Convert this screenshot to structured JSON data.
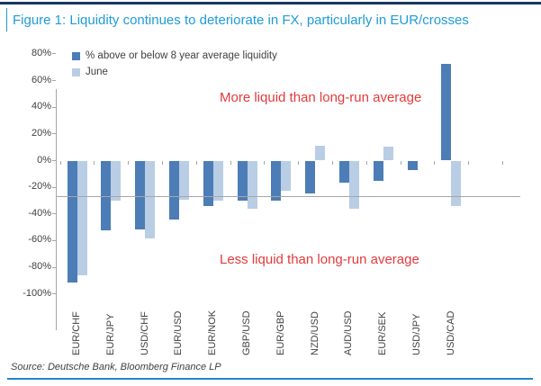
{
  "figure": {
    "title": "Figure 1: Liquidity continues to deteriorate in FX, particularly in EUR/crosses",
    "source": "Source: Deutsche Bank, Bloomberg Finance LP"
  },
  "colors": {
    "title": "#1E9BD7",
    "top_rule": "#17375E",
    "bottom_rule": "#2386C8",
    "series1": "#4C7DB6",
    "series2": "#B9CDE5",
    "annotation": "#E43A3C",
    "axis": "#A6A6A6",
    "labels": "#3F3F3F"
  },
  "chart_data": {
    "type": "bar",
    "title": "Figure 1: Liquidity continues to deteriorate in FX, particularly in EUR/crosses",
    "categories": [
      "EUR/CHF",
      "EUR/JPY",
      "USD/CHF",
      "EUR/USD",
      "EUR/NOK",
      "GBP/USD",
      "EUR/GBP",
      "NZD/USD",
      "AUD/USD",
      "EUR/SEK",
      "USD/JPY",
      "USD/CAD"
    ],
    "series": [
      {
        "name": "% above or below 8 year average liquidity",
        "color": "#4C7DB6",
        "values": [
          -91,
          -52,
          -51,
          -44,
          -34,
          -30,
          -30,
          -24,
          -16,
          -15,
          -7,
          72
        ]
      },
      {
        "name": "June",
        "color": "#B9CDE5",
        "values": [
          -86,
          -30,
          -58,
          -29,
          -30,
          -36,
          -22,
          11,
          -36,
          10,
          0,
          -34
        ]
      }
    ],
    "xlabel": "",
    "ylabel": "",
    "ylim": [
      -100,
      80
    ],
    "y_ticks": [
      80,
      60,
      40,
      20,
      0,
      -20,
      -40,
      -60,
      -80,
      -100
    ],
    "y_tick_labels": [
      "80%",
      "60%",
      "40%",
      "20%",
      "0%",
      "-20%",
      "-40%",
      "-60%",
      "-80%",
      "-100%"
    ],
    "grid": false,
    "legend_position": "top-left",
    "annotations": [
      "More liquid than long-run average",
      "Less liquid than long-run average"
    ],
    "source": "Source: Deutsche Bank, Bloomberg Finance LP"
  }
}
